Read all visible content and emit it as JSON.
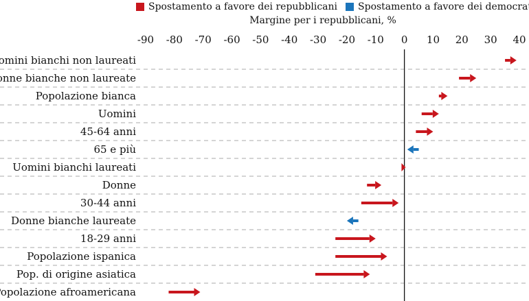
{
  "legend": {
    "rep_label": "Spostamento a favore dei repubblicani",
    "dem_label": "Spostamento a favore dei democratici"
  },
  "colors": {
    "rep": "#c8161d",
    "dem": "#1b75bb",
    "axis": "#111111",
    "grid": "#aaaaaa",
    "text": "#111111"
  },
  "chart_data": {
    "type": "arrow",
    "title": "",
    "xlabel": "Margine per i repubblicani, %",
    "xlim": [
      -90,
      40
    ],
    "xticks": [
      -90,
      -80,
      -70,
      -60,
      -50,
      -40,
      -30,
      -20,
      -10,
      0,
      10,
      20,
      30,
      40
    ],
    "series": [
      {
        "name": "Spostamento a favore dei repubblicani",
        "color_key": "rep"
      },
      {
        "name": "Spostamento a favore dei democratici",
        "color_key": "dem"
      }
    ],
    "categories": [
      "Uomini bianchi non laureati",
      "Donne bianche non laureate",
      "Popolazione bianca",
      "Uomini",
      "45-64 anni",
      "65 e più",
      "Uomini bianchi laureati",
      "Donne",
      "30-44 anni",
      "Donne bianche laureate",
      "18-29 anni",
      "Popolazione ispanica",
      "Pop. di origine asiatica",
      "Popolazione afroamericana"
    ],
    "from": [
      35,
      19,
      12,
      6,
      4,
      5,
      -1,
      -13,
      -15,
      -16,
      -24,
      -24,
      -31,
      -82
    ],
    "to": [
      39,
      25,
      15,
      12,
      10,
      1,
      -1,
      -8,
      -2,
      -20,
      -10,
      -6,
      -12,
      -71
    ],
    "direction": [
      "rep",
      "rep",
      "rep",
      "rep",
      "rep",
      "dem",
      "rep",
      "rep",
      "rep",
      "dem",
      "rep",
      "rep",
      "rep",
      "rep"
    ]
  }
}
